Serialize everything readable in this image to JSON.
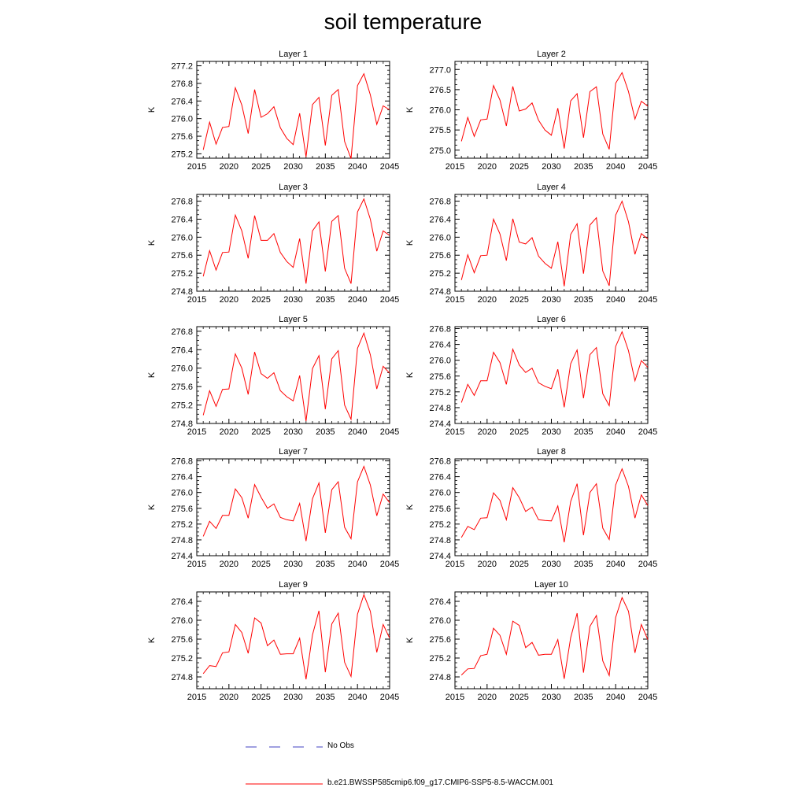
{
  "title": "soil temperature",
  "legend": {
    "items": [
      {
        "label": "No Obs",
        "color": "#4040c0",
        "style": "dashed"
      },
      {
        "label": "b.e21.BWSSP585cmip6.f09_g17.CMIP6-SSP5-8.5-WACCM.001",
        "color": "#ff0000",
        "style": "solid"
      }
    ]
  },
  "chart_data": [
    {
      "type": "line",
      "title": "Layer 1",
      "ylabel": "K",
      "xlim": [
        2015,
        2045
      ],
      "ylim": [
        275.1,
        277.3
      ],
      "xticks": [
        2015,
        2020,
        2025,
        2030,
        2035,
        2040,
        2045
      ],
      "yticks": [
        "275.2",
        "275.6",
        "276.0",
        "276.4",
        "276.8",
        "277.2"
      ],
      "series": [
        {
          "color": "#ff0000",
          "x": [
            2016,
            2017,
            2018,
            2019,
            2020,
            2021,
            2022,
            2023,
            2024,
            2025,
            2026,
            2027,
            2028,
            2029,
            2030,
            2031,
            2032,
            2033,
            2034,
            2035,
            2036,
            2037,
            2038,
            2039,
            2040,
            2041,
            2042,
            2043,
            2044,
            2045
          ],
          "values": [
            275.29,
            275.92,
            275.42,
            275.8,
            275.82,
            276.7,
            276.31,
            275.66,
            276.66,
            276.03,
            276.11,
            276.27,
            275.79,
            275.55,
            275.41,
            276.12,
            275.13,
            276.32,
            276.48,
            275.39,
            276.53,
            276.66,
            275.48,
            275.09,
            276.75,
            277.02,
            276.54,
            275.87,
            276.29,
            276.2
          ]
        }
      ]
    },
    {
      "type": "line",
      "title": "Layer 2",
      "ylabel": "K",
      "xlim": [
        2015,
        2045
      ],
      "ylim": [
        274.8,
        277.2
      ],
      "xticks": [
        2015,
        2020,
        2025,
        2030,
        2035,
        2040,
        2045
      ],
      "yticks": [
        "275.0",
        "275.5",
        "276.0",
        "276.5",
        "277.0"
      ],
      "series": [
        {
          "color": "#ff0000",
          "x": [
            2016,
            2017,
            2018,
            2019,
            2020,
            2021,
            2022,
            2023,
            2024,
            2025,
            2026,
            2027,
            2028,
            2029,
            2030,
            2031,
            2032,
            2033,
            2034,
            2035,
            2036,
            2037,
            2038,
            2039,
            2040,
            2041,
            2042,
            2043,
            2044,
            2045
          ],
          "values": [
            275.22,
            275.81,
            275.34,
            275.75,
            275.77,
            276.6,
            276.24,
            275.6,
            276.58,
            275.97,
            276.02,
            276.17,
            275.74,
            275.5,
            275.37,
            276.04,
            275.04,
            276.22,
            276.4,
            275.31,
            276.45,
            276.57,
            275.4,
            275.02,
            276.66,
            276.92,
            276.45,
            275.77,
            276.21,
            276.09
          ]
        }
      ]
    },
    {
      "type": "line",
      "title": "Layer 3",
      "ylabel": "K",
      "xlim": [
        2015,
        2045
      ],
      "ylim": [
        274.8,
        276.95
      ],
      "xticks": [
        2015,
        2020,
        2025,
        2030,
        2035,
        2040,
        2045
      ],
      "yticks": [
        "274.8",
        "275.2",
        "275.6",
        "276.0",
        "276.4",
        "276.8"
      ],
      "series": [
        {
          "color": "#ff0000",
          "x": [
            2016,
            2017,
            2018,
            2019,
            2020,
            2021,
            2022,
            2023,
            2024,
            2025,
            2026,
            2027,
            2028,
            2029,
            2030,
            2031,
            2032,
            2033,
            2034,
            2035,
            2036,
            2037,
            2038,
            2039,
            2040,
            2041,
            2042,
            2043,
            2044,
            2045
          ],
          "values": [
            275.13,
            275.7,
            275.27,
            275.66,
            275.67,
            276.49,
            276.14,
            275.53,
            276.48,
            275.93,
            275.93,
            276.08,
            275.66,
            275.46,
            275.33,
            275.97,
            274.97,
            276.14,
            276.34,
            275.24,
            276.35,
            276.48,
            275.31,
            274.97,
            276.56,
            276.85,
            276.4,
            275.69,
            276.14,
            276.04
          ]
        }
      ]
    },
    {
      "type": "line",
      "title": "Layer 4",
      "ylabel": "K",
      "xlim": [
        2015,
        2045
      ],
      "ylim": [
        274.8,
        276.95
      ],
      "xticks": [
        2015,
        2020,
        2025,
        2030,
        2035,
        2040,
        2045
      ],
      "yticks": [
        "274.8",
        "275.2",
        "275.6",
        "276.0",
        "276.4",
        "276.8"
      ],
      "series": [
        {
          "color": "#ff0000",
          "x": [
            2016,
            2017,
            2018,
            2019,
            2020,
            2021,
            2022,
            2023,
            2024,
            2025,
            2026,
            2027,
            2028,
            2029,
            2030,
            2031,
            2032,
            2033,
            2034,
            2035,
            2036,
            2037,
            2038,
            2039,
            2040,
            2041,
            2042,
            2043,
            2044,
            2045
          ],
          "values": [
            275.05,
            275.61,
            275.21,
            275.59,
            275.6,
            276.4,
            276.07,
            275.48,
            276.41,
            275.89,
            275.85,
            275.99,
            275.58,
            275.42,
            275.31,
            275.9,
            274.91,
            276.06,
            276.3,
            275.19,
            276.27,
            276.43,
            275.25,
            274.92,
            276.49,
            276.8,
            276.34,
            275.62,
            276.08,
            275.96
          ]
        }
      ]
    },
    {
      "type": "line",
      "title": "Layer 5",
      "ylabel": "K",
      "xlim": [
        2015,
        2045
      ],
      "ylim": [
        274.8,
        276.9
      ],
      "xticks": [
        2015,
        2020,
        2025,
        2030,
        2035,
        2040,
        2045
      ],
      "yticks": [
        "274.8",
        "275.2",
        "275.6",
        "276.0",
        "276.4",
        "276.8"
      ],
      "series": [
        {
          "color": "#ff0000",
          "x": [
            2016,
            2017,
            2018,
            2019,
            2020,
            2021,
            2022,
            2023,
            2024,
            2025,
            2026,
            2027,
            2028,
            2029,
            2030,
            2031,
            2032,
            2033,
            2034,
            2035,
            2036,
            2037,
            2038,
            2039,
            2040,
            2041,
            2042,
            2043,
            2044,
            2045
          ],
          "values": [
            274.98,
            275.51,
            275.17,
            275.54,
            275.55,
            276.31,
            276.0,
            275.43,
            276.35,
            275.88,
            275.78,
            275.9,
            275.51,
            275.38,
            275.29,
            275.84,
            274.85,
            275.99,
            276.27,
            275.11,
            276.2,
            276.38,
            275.2,
            274.89,
            276.43,
            276.76,
            276.29,
            275.55,
            276.04,
            275.89
          ]
        }
      ]
    },
    {
      "type": "line",
      "title": "Layer 6",
      "ylabel": "K",
      "xlim": [
        2015,
        2045
      ],
      "ylim": [
        274.4,
        276.85
      ],
      "xticks": [
        2015,
        2020,
        2025,
        2030,
        2035,
        2040,
        2045
      ],
      "yticks": [
        "274.4",
        "274.8",
        "275.2",
        "275.6",
        "276.0",
        "276.4",
        "276.8"
      ],
      "series": [
        {
          "color": "#ff0000",
          "x": [
            2016,
            2017,
            2018,
            2019,
            2020,
            2021,
            2022,
            2023,
            2024,
            2025,
            2026,
            2027,
            2028,
            2029,
            2030,
            2031,
            2032,
            2033,
            2034,
            2035,
            2036,
            2037,
            2038,
            2039,
            2040,
            2041,
            2042,
            2043,
            2044,
            2045
          ],
          "values": [
            274.93,
            275.39,
            275.11,
            275.48,
            275.48,
            276.2,
            275.94,
            275.39,
            276.28,
            275.88,
            275.69,
            275.8,
            275.43,
            275.34,
            275.28,
            275.77,
            274.81,
            275.91,
            276.26,
            275.04,
            276.14,
            276.32,
            275.15,
            274.85,
            276.35,
            276.72,
            276.24,
            275.48,
            275.99,
            275.82
          ]
        }
      ]
    },
    {
      "type": "line",
      "title": "Layer 7",
      "ylabel": "K",
      "xlim": [
        2015,
        2045
      ],
      "ylim": [
        274.4,
        276.85
      ],
      "xticks": [
        2015,
        2020,
        2025,
        2030,
        2035,
        2040,
        2045
      ],
      "yticks": [
        "274.4",
        "274.8",
        "275.2",
        "275.6",
        "276.0",
        "276.4",
        "276.8"
      ],
      "series": [
        {
          "color": "#ff0000",
          "x": [
            2016,
            2017,
            2018,
            2019,
            2020,
            2021,
            2022,
            2023,
            2024,
            2025,
            2026,
            2027,
            2028,
            2029,
            2030,
            2031,
            2032,
            2033,
            2034,
            2035,
            2036,
            2037,
            2038,
            2039,
            2040,
            2041,
            2042,
            2043,
            2044,
            2045
          ],
          "values": [
            274.89,
            275.27,
            275.09,
            275.42,
            275.42,
            276.09,
            275.87,
            275.35,
            276.2,
            275.88,
            275.6,
            275.71,
            275.37,
            275.31,
            275.28,
            275.72,
            274.77,
            275.84,
            276.24,
            274.98,
            276.07,
            276.27,
            275.12,
            274.83,
            276.27,
            276.66,
            276.19,
            275.41,
            275.96,
            275.74
          ]
        }
      ]
    },
    {
      "type": "line",
      "title": "Layer 8",
      "ylabel": "K",
      "xlim": [
        2015,
        2045
      ],
      "ylim": [
        274.4,
        276.85
      ],
      "xticks": [
        2015,
        2020,
        2025,
        2030,
        2035,
        2040,
        2045
      ],
      "yticks": [
        "274.4",
        "274.8",
        "275.2",
        "275.6",
        "276.0",
        "276.4",
        "276.8"
      ],
      "series": [
        {
          "color": "#ff0000",
          "x": [
            2016,
            2017,
            2018,
            2019,
            2020,
            2021,
            2022,
            2023,
            2024,
            2025,
            2026,
            2027,
            2028,
            2029,
            2030,
            2031,
            2032,
            2033,
            2034,
            2035,
            2036,
            2037,
            2038,
            2039,
            2040,
            2041,
            2042,
            2043,
            2044,
            2045
          ],
          "values": [
            274.86,
            275.14,
            275.06,
            275.35,
            275.36,
            275.99,
            275.8,
            275.31,
            276.12,
            275.87,
            275.52,
            275.63,
            275.31,
            275.29,
            275.28,
            275.66,
            274.74,
            275.77,
            276.22,
            274.92,
            276.0,
            276.22,
            275.1,
            274.81,
            276.19,
            276.6,
            276.15,
            275.35,
            275.94,
            275.67
          ]
        }
      ]
    },
    {
      "type": "line",
      "title": "Layer 9",
      "ylabel": "K",
      "xlim": [
        2015,
        2045
      ],
      "ylim": [
        274.55,
        276.6
      ],
      "xticks": [
        2015,
        2020,
        2025,
        2030,
        2035,
        2040,
        2045
      ],
      "yticks": [
        "274.8",
        "275.2",
        "275.6",
        "276.0",
        "276.4"
      ],
      "series": [
        {
          "color": "#ff0000",
          "x": [
            2016,
            2017,
            2018,
            2019,
            2020,
            2021,
            2022,
            2023,
            2024,
            2025,
            2026,
            2027,
            2028,
            2029,
            2030,
            2031,
            2032,
            2033,
            2034,
            2035,
            2036,
            2037,
            2038,
            2039,
            2040,
            2041,
            2042,
            2043,
            2044,
            2045
          ],
          "values": [
            274.87,
            275.04,
            275.02,
            275.31,
            275.33,
            275.91,
            275.74,
            275.3,
            276.05,
            275.94,
            275.46,
            275.58,
            275.28,
            275.29,
            275.29,
            275.62,
            274.75,
            275.69,
            276.2,
            274.9,
            275.92,
            276.15,
            275.11,
            274.81,
            276.13,
            276.54,
            276.19,
            275.32,
            275.91,
            275.62
          ]
        }
      ]
    },
    {
      "type": "line",
      "title": "Layer 10",
      "ylabel": "K",
      "xlim": [
        2015,
        2045
      ],
      "ylim": [
        274.55,
        276.6
      ],
      "xticks": [
        2015,
        2020,
        2025,
        2030,
        2035,
        2040,
        2045
      ],
      "yticks": [
        "274.8",
        "275.2",
        "275.6",
        "276.0",
        "276.4"
      ],
      "series": [
        {
          "color": "#ff0000",
          "x": [
            2016,
            2017,
            2018,
            2019,
            2020,
            2021,
            2022,
            2023,
            2024,
            2025,
            2026,
            2027,
            2028,
            2029,
            2030,
            2031,
            2032,
            2033,
            2034,
            2035,
            2036,
            2037,
            2038,
            2039,
            2040,
            2041,
            2042,
            2043,
            2044,
            2045
          ],
          "values": [
            274.84,
            274.97,
            274.98,
            275.25,
            275.28,
            275.83,
            275.68,
            275.28,
            275.98,
            275.89,
            275.42,
            275.53,
            275.26,
            275.28,
            275.28,
            275.59,
            274.76,
            275.63,
            276.15,
            274.89,
            275.87,
            276.1,
            275.14,
            274.83,
            276.06,
            276.48,
            276.19,
            275.31,
            275.91,
            275.59
          ]
        }
      ]
    }
  ]
}
